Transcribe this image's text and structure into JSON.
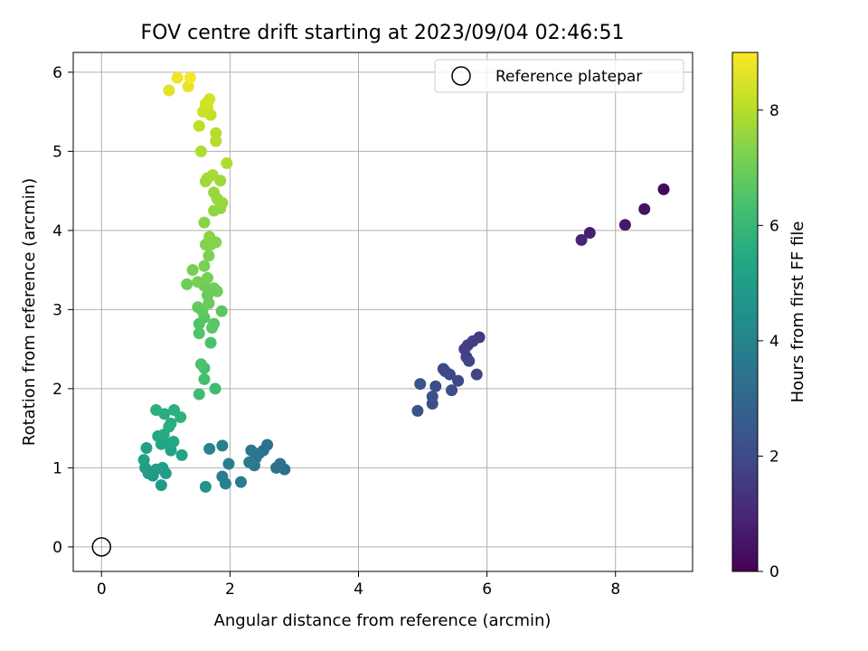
{
  "chart_data": {
    "type": "scatter",
    "title": "FOV centre drift starting at 2023/09/04 02:46:51",
    "xlabel": "Angular distance from reference (arcmin)",
    "ylabel": "Rotation from reference (arcmin)",
    "xlim": [
      -0.44,
      9.2
    ],
    "ylim": [
      -0.31,
      6.25
    ],
    "xticks": [
      0,
      2,
      4,
      6,
      8
    ],
    "yticks": [
      0,
      1,
      2,
      3,
      4,
      5,
      6
    ],
    "grid": true,
    "legend": {
      "placement": "top-right",
      "entries": [
        "Reference platepar"
      ]
    },
    "reference_point": {
      "x": 0,
      "y": 0,
      "label": "Reference platepar"
    },
    "colorbar": {
      "label": "Hours from first FF file",
      "range": [
        0,
        9
      ],
      "ticks": [
        0,
        2,
        4,
        6,
        8
      ],
      "colormap": "viridis"
    },
    "points": [
      {
        "x": 8.75,
        "y": 4.52,
        "t": 0.2
      },
      {
        "x": 8.45,
        "y": 4.27,
        "t": 0.4
      },
      {
        "x": 8.15,
        "y": 4.07,
        "t": 0.6
      },
      {
        "x": 7.6,
        "y": 3.97,
        "t": 0.8
      },
      {
        "x": 7.47,
        "y": 3.88,
        "t": 0.9
      },
      {
        "x": 5.88,
        "y": 2.65,
        "t": 1.5
      },
      {
        "x": 5.78,
        "y": 2.6,
        "t": 1.6
      },
      {
        "x": 5.7,
        "y": 2.55,
        "t": 1.6
      },
      {
        "x": 5.65,
        "y": 2.5,
        "t": 1.7
      },
      {
        "x": 5.68,
        "y": 2.4,
        "t": 1.7
      },
      {
        "x": 5.72,
        "y": 2.35,
        "t": 1.8
      },
      {
        "x": 5.84,
        "y": 2.18,
        "t": 1.8
      },
      {
        "x": 5.55,
        "y": 2.1,
        "t": 1.9
      },
      {
        "x": 5.42,
        "y": 2.18,
        "t": 1.9
      },
      {
        "x": 5.35,
        "y": 2.22,
        "t": 2.0
      },
      {
        "x": 5.32,
        "y": 2.25,
        "t": 2.0
      },
      {
        "x": 5.45,
        "y": 1.98,
        "t": 2.1
      },
      {
        "x": 5.2,
        "y": 2.03,
        "t": 2.1
      },
      {
        "x": 5.15,
        "y": 1.9,
        "t": 2.2
      },
      {
        "x": 5.15,
        "y": 1.81,
        "t": 2.2
      },
      {
        "x": 4.96,
        "y": 2.06,
        "t": 2.3
      },
      {
        "x": 4.92,
        "y": 1.72,
        "t": 2.3
      },
      {
        "x": 2.85,
        "y": 0.98,
        "t": 3.2
      },
      {
        "x": 2.78,
        "y": 1.05,
        "t": 3.3
      },
      {
        "x": 2.72,
        "y": 1.0,
        "t": 3.3
      },
      {
        "x": 2.58,
        "y": 1.29,
        "t": 3.4
      },
      {
        "x": 2.52,
        "y": 1.22,
        "t": 3.4
      },
      {
        "x": 2.45,
        "y": 1.18,
        "t": 3.5
      },
      {
        "x": 2.4,
        "y": 1.12,
        "t": 3.5
      },
      {
        "x": 2.33,
        "y": 1.22,
        "t": 3.6
      },
      {
        "x": 2.38,
        "y": 1.03,
        "t": 3.6
      },
      {
        "x": 2.3,
        "y": 1.07,
        "t": 3.7
      },
      {
        "x": 2.17,
        "y": 0.82,
        "t": 3.7
      },
      {
        "x": 1.98,
        "y": 1.05,
        "t": 3.8
      },
      {
        "x": 1.88,
        "y": 0.89,
        "t": 3.8
      },
      {
        "x": 1.93,
        "y": 0.8,
        "t": 3.9
      },
      {
        "x": 1.88,
        "y": 1.28,
        "t": 3.9
      },
      {
        "x": 1.68,
        "y": 1.24,
        "t": 4.0
      },
      {
        "x": 1.62,
        "y": 0.76,
        "t": 4.6
      },
      {
        "x": 0.93,
        "y": 0.78,
        "t": 4.8
      },
      {
        "x": 0.8,
        "y": 0.9,
        "t": 4.8
      },
      {
        "x": 0.73,
        "y": 0.93,
        "t": 4.9
      },
      {
        "x": 0.85,
        "y": 0.98,
        "t": 4.9
      },
      {
        "x": 0.95,
        "y": 1.0,
        "t": 5.0
      },
      {
        "x": 1.0,
        "y": 0.93,
        "t": 5.0
      },
      {
        "x": 0.68,
        "y": 1.0,
        "t": 5.0
      },
      {
        "x": 0.66,
        "y": 1.1,
        "t": 5.1
      },
      {
        "x": 0.7,
        "y": 1.25,
        "t": 5.1
      },
      {
        "x": 1.25,
        "y": 1.16,
        "t": 5.2
      },
      {
        "x": 1.08,
        "y": 1.22,
        "t": 5.2
      },
      {
        "x": 1.05,
        "y": 1.3,
        "t": 5.3
      },
      {
        "x": 0.93,
        "y": 1.3,
        "t": 5.3
      },
      {
        "x": 1.12,
        "y": 1.33,
        "t": 5.4
      },
      {
        "x": 0.88,
        "y": 1.4,
        "t": 5.4
      },
      {
        "x": 0.97,
        "y": 1.42,
        "t": 5.5
      },
      {
        "x": 1.05,
        "y": 1.52,
        "t": 5.5
      },
      {
        "x": 1.08,
        "y": 1.56,
        "t": 5.6
      },
      {
        "x": 0.98,
        "y": 1.68,
        "t": 5.6
      },
      {
        "x": 0.85,
        "y": 1.73,
        "t": 5.7
      },
      {
        "x": 1.13,
        "y": 1.73,
        "t": 5.7
      },
      {
        "x": 1.23,
        "y": 1.64,
        "t": 5.8
      },
      {
        "x": 1.52,
        "y": 1.93,
        "t": 6.2
      },
      {
        "x": 1.77,
        "y": 2.0,
        "t": 6.2
      },
      {
        "x": 1.6,
        "y": 2.12,
        "t": 6.3
      },
      {
        "x": 1.6,
        "y": 2.26,
        "t": 6.3
      },
      {
        "x": 1.55,
        "y": 2.31,
        "t": 6.4
      },
      {
        "x": 1.7,
        "y": 2.58,
        "t": 6.4
      },
      {
        "x": 1.52,
        "y": 2.7,
        "t": 6.5
      },
      {
        "x": 1.52,
        "y": 2.82,
        "t": 6.5
      },
      {
        "x": 1.6,
        "y": 2.9,
        "t": 6.6
      },
      {
        "x": 1.75,
        "y": 2.82,
        "t": 6.6
      },
      {
        "x": 1.72,
        "y": 2.77,
        "t": 6.7
      },
      {
        "x": 1.87,
        "y": 2.98,
        "t": 6.7
      },
      {
        "x": 1.57,
        "y": 2.98,
        "t": 6.8
      },
      {
        "x": 1.5,
        "y": 3.03,
        "t": 6.8
      },
      {
        "x": 1.67,
        "y": 3.08,
        "t": 6.9
      },
      {
        "x": 1.65,
        "y": 3.18,
        "t": 6.9
      },
      {
        "x": 1.8,
        "y": 3.23,
        "t": 7.0
      },
      {
        "x": 1.75,
        "y": 3.27,
        "t": 7.0
      },
      {
        "x": 1.6,
        "y": 3.3,
        "t": 7.0
      },
      {
        "x": 1.33,
        "y": 3.32,
        "t": 7.0
      },
      {
        "x": 1.5,
        "y": 3.35,
        "t": 7.1
      },
      {
        "x": 1.65,
        "y": 3.4,
        "t": 7.1
      },
      {
        "x": 1.42,
        "y": 3.5,
        "t": 7.1
      },
      {
        "x": 1.6,
        "y": 3.55,
        "t": 7.2
      },
      {
        "x": 1.67,
        "y": 3.68,
        "t": 7.2
      },
      {
        "x": 1.7,
        "y": 3.82,
        "t": 7.3
      },
      {
        "x": 1.62,
        "y": 3.82,
        "t": 7.3
      },
      {
        "x": 1.78,
        "y": 3.85,
        "t": 7.3
      },
      {
        "x": 1.68,
        "y": 3.92,
        "t": 7.4
      },
      {
        "x": 1.6,
        "y": 4.1,
        "t": 7.4
      },
      {
        "x": 1.75,
        "y": 4.25,
        "t": 7.5
      },
      {
        "x": 1.85,
        "y": 4.28,
        "t": 7.5
      },
      {
        "x": 1.88,
        "y": 4.35,
        "t": 7.6
      },
      {
        "x": 1.8,
        "y": 4.4,
        "t": 7.6
      },
      {
        "x": 1.75,
        "y": 4.48,
        "t": 7.6
      },
      {
        "x": 1.62,
        "y": 4.62,
        "t": 7.7
      },
      {
        "x": 1.65,
        "y": 4.66,
        "t": 7.7
      },
      {
        "x": 1.85,
        "y": 4.63,
        "t": 7.7
      },
      {
        "x": 1.73,
        "y": 4.7,
        "t": 7.8
      },
      {
        "x": 1.95,
        "y": 4.85,
        "t": 7.9
      },
      {
        "x": 1.55,
        "y": 5.0,
        "t": 7.9
      },
      {
        "x": 1.78,
        "y": 5.13,
        "t": 8.0
      },
      {
        "x": 1.78,
        "y": 5.23,
        "t": 8.0
      },
      {
        "x": 1.52,
        "y": 5.32,
        "t": 8.1
      },
      {
        "x": 1.7,
        "y": 5.46,
        "t": 8.2
      },
      {
        "x": 1.58,
        "y": 5.5,
        "t": 8.3
      },
      {
        "x": 1.65,
        "y": 5.56,
        "t": 8.3
      },
      {
        "x": 1.62,
        "y": 5.6,
        "t": 8.4
      },
      {
        "x": 1.68,
        "y": 5.66,
        "t": 8.4
      },
      {
        "x": 1.05,
        "y": 5.77,
        "t": 8.6
      },
      {
        "x": 1.35,
        "y": 5.82,
        "t": 8.7
      },
      {
        "x": 1.18,
        "y": 5.93,
        "t": 8.8
      },
      {
        "x": 1.38,
        "y": 5.93,
        "t": 8.9
      }
    ]
  }
}
